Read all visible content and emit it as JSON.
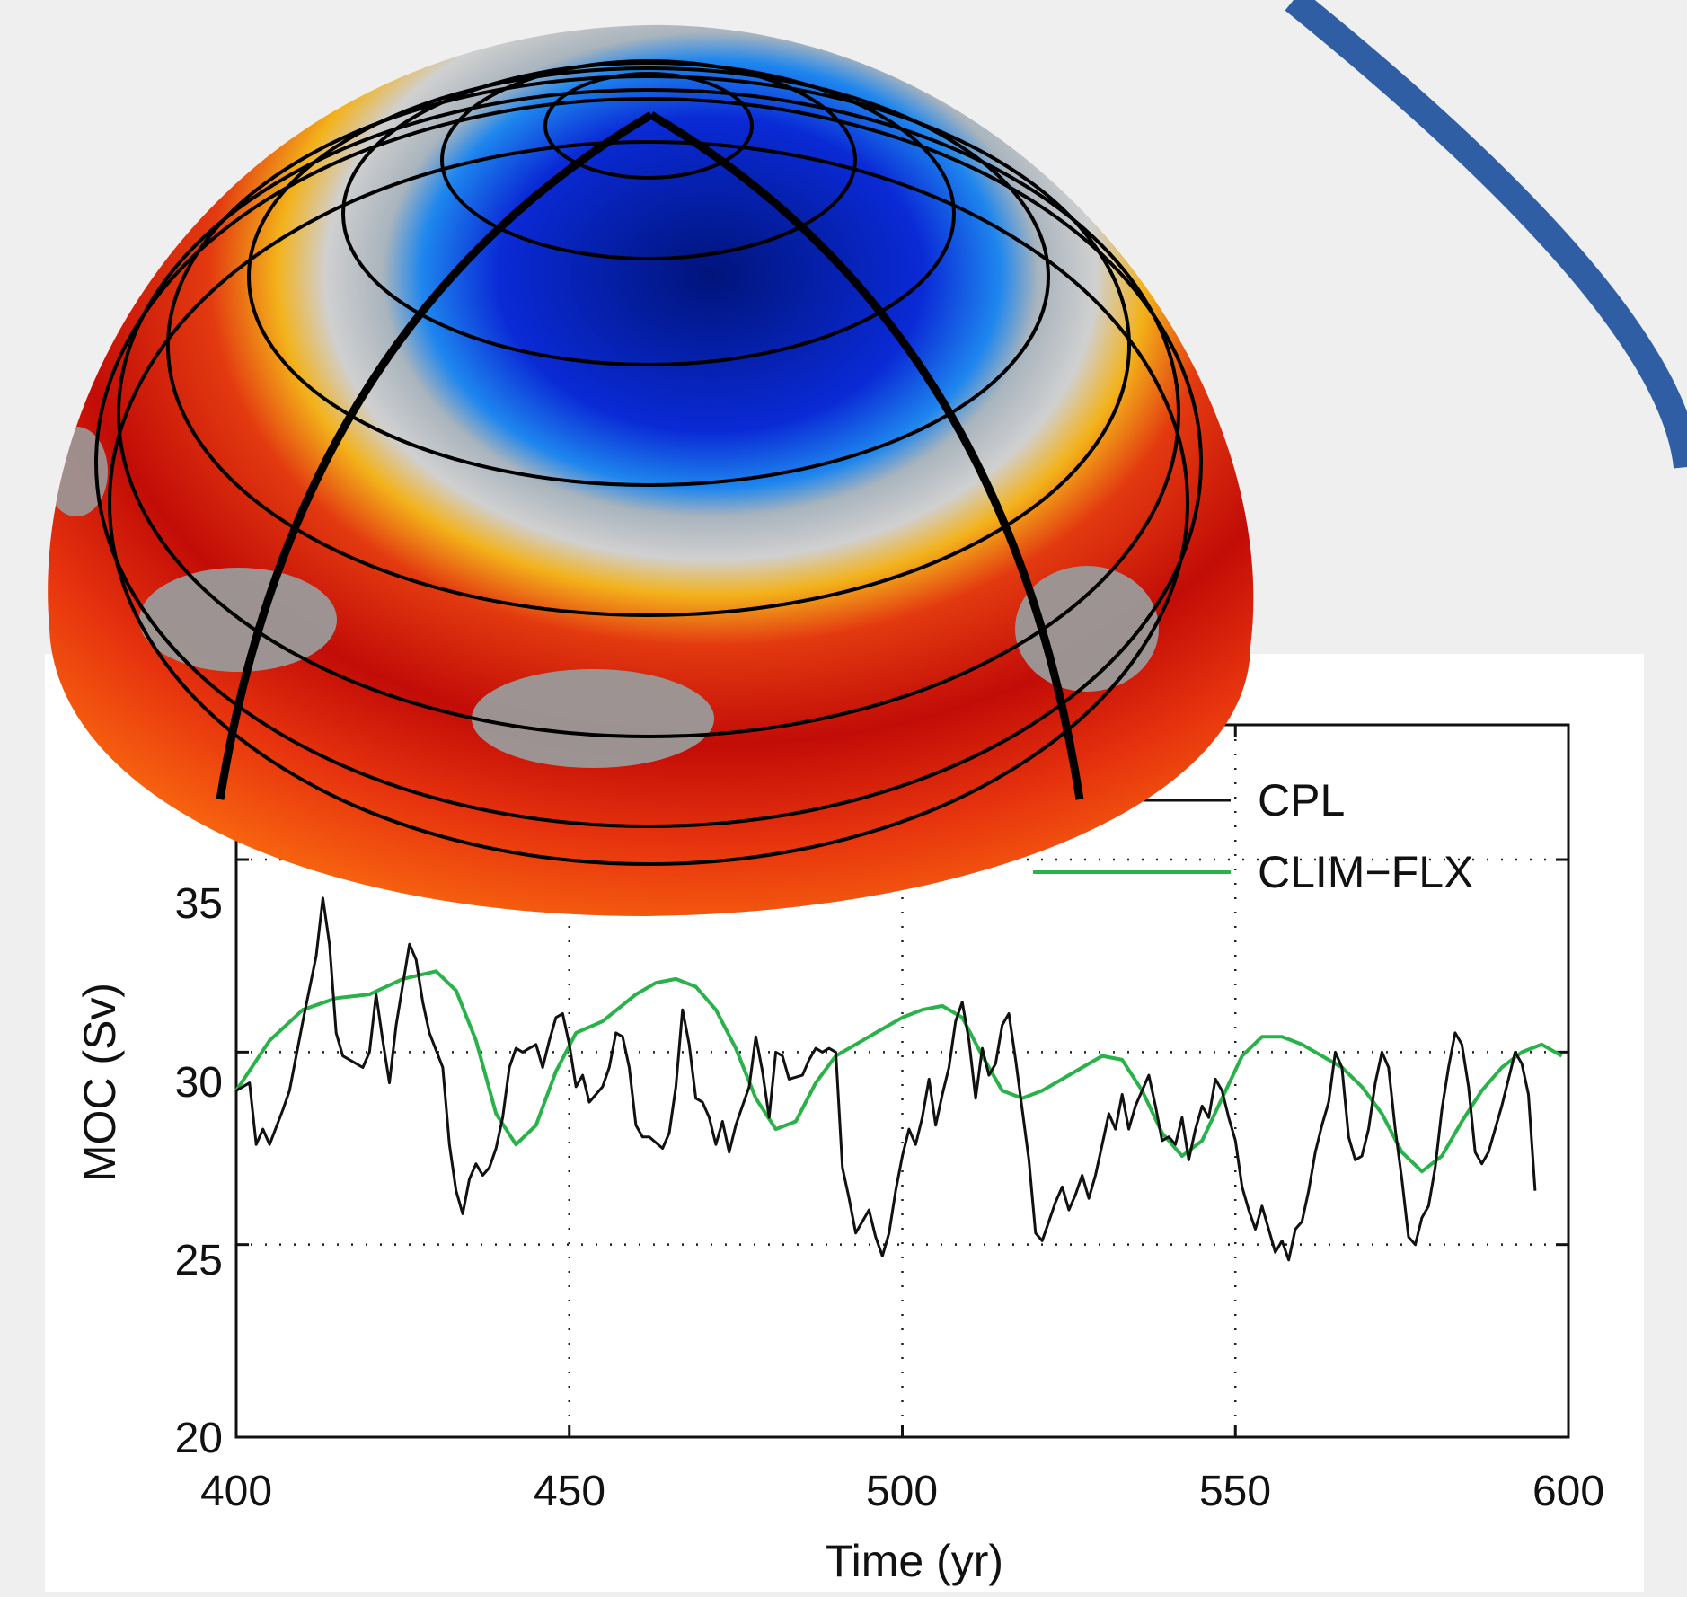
{
  "chart_data": {
    "type": "line",
    "title": "",
    "xlabel": "Time (yr)",
    "ylabel": "MOC (Sv)",
    "xlim": [
      400,
      600
    ],
    "ylim": [
      20,
      38.5
    ],
    "xticks": [
      400,
      450,
      500,
      550,
      600
    ],
    "yticks": [
      20,
      25,
      30,
      35
    ],
    "grid": true,
    "legend_position": "top-right",
    "series": [
      {
        "name": "CPL",
        "color": "#111111",
        "points": [
          [
            400,
            29.0
          ],
          [
            402,
            29.2
          ],
          [
            403,
            27.6
          ],
          [
            404,
            28.0
          ],
          [
            405,
            27.6
          ],
          [
            407,
            28.5
          ],
          [
            408,
            29.0
          ],
          [
            410,
            30.8
          ],
          [
            412,
            32.5
          ],
          [
            413,
            34.0
          ],
          [
            414,
            32.8
          ],
          [
            415,
            30.5
          ],
          [
            416,
            29.9
          ],
          [
            418,
            29.7
          ],
          [
            419,
            29.6
          ],
          [
            420,
            30.0
          ],
          [
            421,
            31.5
          ],
          [
            422,
            30.3
          ],
          [
            423,
            29.2
          ],
          [
            424,
            30.7
          ],
          [
            426,
            32.8
          ],
          [
            427,
            32.4
          ],
          [
            428,
            31.3
          ],
          [
            429,
            30.5
          ],
          [
            431,
            29.6
          ],
          [
            432,
            27.6
          ],
          [
            433,
            26.4
          ],
          [
            434,
            25.8
          ],
          [
            435,
            26.7
          ],
          [
            436,
            27.1
          ],
          [
            437,
            26.8
          ],
          [
            438,
            27.0
          ],
          [
            439,
            27.5
          ],
          [
            440,
            28.3
          ],
          [
            441,
            29.6
          ],
          [
            442,
            30.1
          ],
          [
            443,
            30.0
          ],
          [
            444,
            30.1
          ],
          [
            445,
            30.2
          ],
          [
            446,
            29.6
          ],
          [
            447,
            30.3
          ],
          [
            448,
            30.9
          ],
          [
            449,
            31.0
          ],
          [
            450,
            30.2
          ],
          [
            451,
            29.1
          ],
          [
            452,
            29.4
          ],
          [
            453,
            28.7
          ],
          [
            455,
            29.1
          ],
          [
            456,
            29.6
          ],
          [
            457,
            30.5
          ],
          [
            458,
            30.4
          ],
          [
            459,
            29.6
          ],
          [
            460,
            28.1
          ],
          [
            461,
            27.8
          ],
          [
            462,
            27.8
          ],
          [
            464,
            27.5
          ],
          [
            465,
            27.9
          ],
          [
            466,
            29.1
          ],
          [
            467,
            31.1
          ],
          [
            468,
            30.2
          ],
          [
            469,
            28.8
          ],
          [
            470,
            28.7
          ],
          [
            471,
            28.3
          ],
          [
            472,
            27.6
          ],
          [
            473,
            28.2
          ],
          [
            474,
            27.4
          ],
          [
            475,
            28.1
          ],
          [
            476,
            28.6
          ],
          [
            477,
            29.1
          ],
          [
            478,
            30.4
          ],
          [
            479,
            29.5
          ],
          [
            480,
            28.3
          ],
          [
            481,
            30.0
          ],
          [
            482,
            29.9
          ],
          [
            483,
            29.3
          ],
          [
            485,
            29.4
          ],
          [
            486,
            29.8
          ],
          [
            487,
            30.1
          ],
          [
            488,
            30.0
          ],
          [
            489,
            30.1
          ],
          [
            490,
            30.0
          ],
          [
            491,
            27.0
          ],
          [
            492,
            26.2
          ],
          [
            493,
            25.3
          ],
          [
            494,
            25.6
          ],
          [
            495,
            25.9
          ],
          [
            496,
            25.2
          ],
          [
            497,
            24.7
          ],
          [
            498,
            25.3
          ],
          [
            499,
            26.4
          ],
          [
            500,
            27.3
          ],
          [
            501,
            28.0
          ],
          [
            502,
            27.6
          ],
          [
            503,
            28.3
          ],
          [
            504,
            29.3
          ],
          [
            505,
            28.1
          ],
          [
            506,
            28.9
          ],
          [
            507,
            29.6
          ],
          [
            508,
            30.8
          ],
          [
            509,
            31.3
          ],
          [
            510,
            30.3
          ],
          [
            511,
            28.8
          ],
          [
            512,
            30.1
          ],
          [
            513,
            29.4
          ],
          [
            514,
            29.7
          ],
          [
            515,
            30.7
          ],
          [
            516,
            31.0
          ],
          [
            517,
            29.8
          ],
          [
            518,
            28.5
          ],
          [
            519,
            27.2
          ],
          [
            520,
            25.3
          ],
          [
            521,
            25.1
          ],
          [
            522,
            25.6
          ],
          [
            523,
            26.1
          ],
          [
            524,
            26.5
          ],
          [
            525,
            25.9
          ],
          [
            526,
            26.3
          ],
          [
            527,
            26.8
          ],
          [
            528,
            26.2
          ],
          [
            529,
            26.8
          ],
          [
            530,
            27.6
          ],
          [
            531,
            28.4
          ],
          [
            532,
            28.0
          ],
          [
            533,
            28.9
          ],
          [
            534,
            28.0
          ],
          [
            535,
            28.6
          ],
          [
            536,
            29.0
          ],
          [
            537,
            29.4
          ],
          [
            538,
            28.6
          ],
          [
            539,
            27.7
          ],
          [
            540,
            27.8
          ],
          [
            541,
            27.6
          ],
          [
            542,
            28.3
          ],
          [
            543,
            27.2
          ],
          [
            544,
            28.0
          ],
          [
            545,
            28.6
          ],
          [
            546,
            28.3
          ],
          [
            547,
            29.3
          ],
          [
            548,
            29.0
          ],
          [
            549,
            28.3
          ],
          [
            550,
            27.7
          ],
          [
            551,
            26.5
          ],
          [
            552,
            25.9
          ],
          [
            553,
            25.4
          ],
          [
            554,
            26.0
          ],
          [
            555,
            25.4
          ],
          [
            556,
            24.8
          ],
          [
            557,
            25.1
          ],
          [
            558,
            24.6
          ],
          [
            559,
            25.4
          ],
          [
            560,
            25.6
          ],
          [
            561,
            26.4
          ],
          [
            562,
            27.4
          ],
          [
            563,
            28.1
          ],
          [
            564,
            28.7
          ],
          [
            565,
            30.0
          ],
          [
            566,
            29.6
          ],
          [
            567,
            27.8
          ],
          [
            568,
            27.2
          ],
          [
            569,
            27.3
          ],
          [
            570,
            28.0
          ],
          [
            571,
            29.2
          ],
          [
            572,
            30.0
          ],
          [
            573,
            29.6
          ],
          [
            574,
            28.0
          ],
          [
            575,
            26.7
          ],
          [
            576,
            25.2
          ],
          [
            577,
            25.0
          ],
          [
            578,
            25.7
          ],
          [
            579,
            26.0
          ],
          [
            580,
            27.0
          ],
          [
            581,
            28.5
          ],
          [
            582,
            29.6
          ],
          [
            583,
            30.5
          ],
          [
            584,
            30.2
          ],
          [
            585,
            29.1
          ],
          [
            586,
            27.4
          ],
          [
            587,
            27.1
          ],
          [
            588,
            27.4
          ],
          [
            589,
            28.0
          ],
          [
            590,
            28.6
          ],
          [
            591,
            29.3
          ],
          [
            592,
            30.0
          ],
          [
            593,
            29.7
          ],
          [
            594,
            28.9
          ],
          [
            595,
            26.4
          ]
        ]
      },
      {
        "name": "CLIM−FLX",
        "color": "#2ab24a",
        "points": [
          [
            400,
            29.0
          ],
          [
            405,
            30.3
          ],
          [
            410,
            31.1
          ],
          [
            415,
            31.4
          ],
          [
            420,
            31.5
          ],
          [
            425,
            31.9
          ],
          [
            430,
            32.1
          ],
          [
            433,
            31.6
          ],
          [
            436,
            30.3
          ],
          [
            439,
            28.4
          ],
          [
            442,
            27.6
          ],
          [
            445,
            28.1
          ],
          [
            448,
            29.5
          ],
          [
            451,
            30.5
          ],
          [
            455,
            30.8
          ],
          [
            460,
            31.5
          ],
          [
            463,
            31.8
          ],
          [
            466,
            31.9
          ],
          [
            469,
            31.7
          ],
          [
            472,
            31.1
          ],
          [
            475,
            30.1
          ],
          [
            478,
            28.8
          ],
          [
            481,
            28.0
          ],
          [
            484,
            28.2
          ],
          [
            487,
            29.2
          ],
          [
            490,
            29.9
          ],
          [
            493,
            30.2
          ],
          [
            496,
            30.5
          ],
          [
            500,
            30.9
          ],
          [
            503,
            31.1
          ],
          [
            506,
            31.2
          ],
          [
            509,
            30.9
          ],
          [
            512,
            29.9
          ],
          [
            515,
            29.0
          ],
          [
            518,
            28.8
          ],
          [
            521,
            29.0
          ],
          [
            524,
            29.3
          ],
          [
            527,
            29.6
          ],
          [
            530,
            29.9
          ],
          [
            533,
            29.8
          ],
          [
            536,
            29.0
          ],
          [
            539,
            27.9
          ],
          [
            542,
            27.3
          ],
          [
            545,
            27.7
          ],
          [
            548,
            28.8
          ],
          [
            551,
            29.9
          ],
          [
            554,
            30.4
          ],
          [
            557,
            30.4
          ],
          [
            560,
            30.2
          ],
          [
            563,
            29.9
          ],
          [
            566,
            29.6
          ],
          [
            569,
            29.1
          ],
          [
            572,
            28.4
          ],
          [
            575,
            27.4
          ],
          [
            578,
            26.9
          ],
          [
            581,
            27.3
          ],
          [
            584,
            28.2
          ],
          [
            587,
            29.0
          ],
          [
            590,
            29.6
          ],
          [
            593,
            30.0
          ],
          [
            596,
            30.2
          ],
          [
            599,
            29.9
          ],
          [
            602,
            29.3
          ],
          [
            605,
            28.5
          ]
        ]
      }
    ]
  },
  "colors": {
    "ocean_blue": "#1a2fd8",
    "warm_red": "#e21f0c",
    "arc_blue": "#2f5ea5"
  }
}
